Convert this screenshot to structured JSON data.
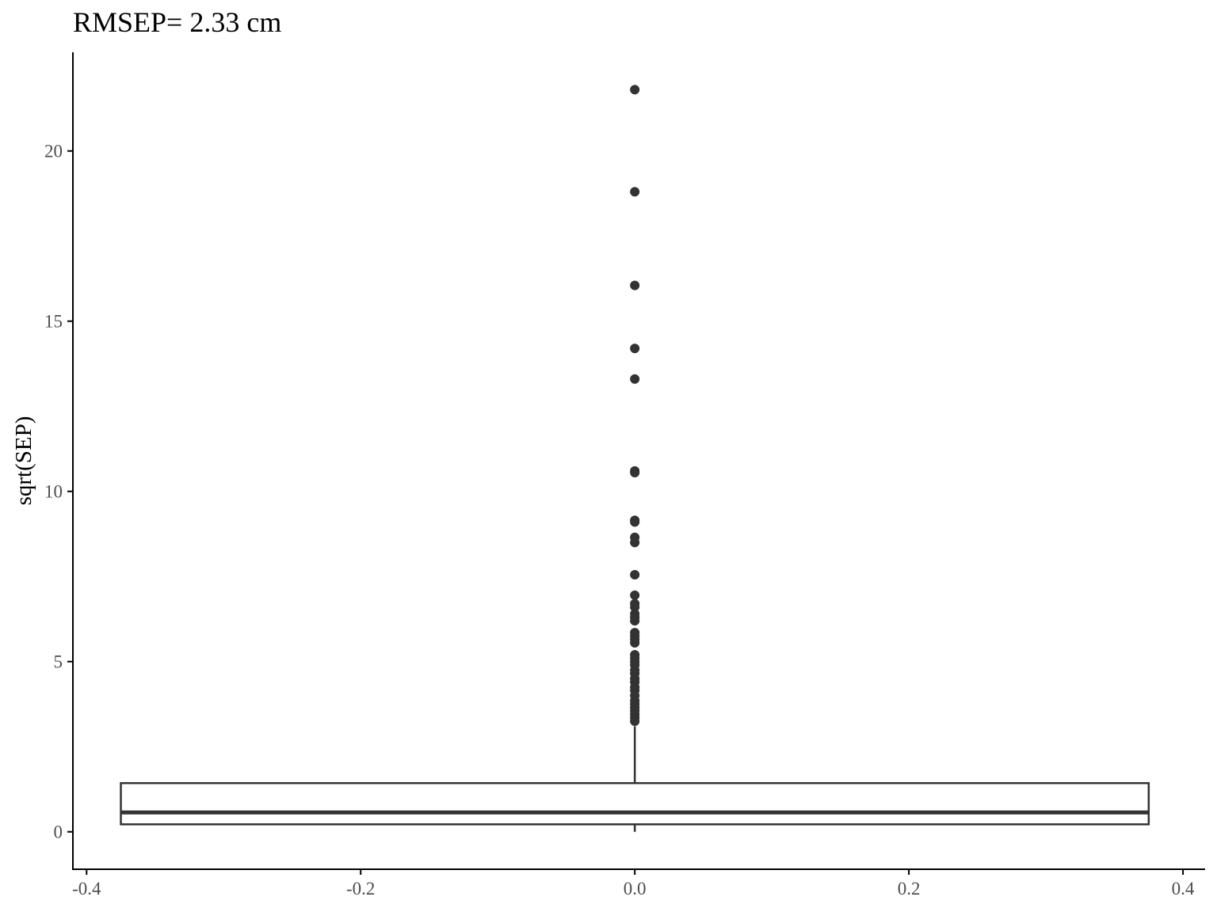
{
  "chart_data": {
    "type": "boxplot",
    "title": "RMSEP= 2.33 cm",
    "xlabel": "",
    "ylabel": "sqrt(SEP)",
    "xlim": [
      -0.41,
      0.415
    ],
    "ylim": [
      -1.1,
      22.9
    ],
    "x_ticks": [
      -0.4,
      -0.2,
      0.0,
      0.2,
      0.4
    ],
    "x_tick_labels": [
      "-0.4",
      "-0.2",
      "0.0",
      "0.2",
      "0.4"
    ],
    "y_ticks": [
      0,
      5,
      10,
      15,
      20
    ],
    "y_tick_labels": [
      "0",
      "5",
      "10",
      "15",
      "20"
    ],
    "grid": false,
    "box": {
      "x_center": 0.0,
      "x_left": -0.375,
      "x_right": 0.375,
      "q1": 0.22,
      "median": 0.57,
      "q3": 1.43,
      "whisker_low": 0.0,
      "whisker_high": 3.1
    },
    "outliers": [
      21.8,
      18.8,
      16.05,
      14.2,
      13.3,
      10.6,
      10.55,
      9.15,
      9.1,
      8.65,
      8.5,
      7.55,
      6.95,
      6.7,
      6.6,
      6.4,
      6.3,
      6.2,
      5.85,
      5.75,
      5.65,
      5.55,
      5.2,
      5.1,
      5.0,
      4.9,
      4.75,
      4.65,
      4.5,
      4.4,
      4.25,
      4.15,
      4.0,
      3.85,
      3.75,
      3.65,
      3.55,
      3.45,
      3.35,
      3.25
    ],
    "colors": {
      "box_line": "#333333",
      "median": "#333333",
      "outlier": "#333333",
      "axis": "#000000",
      "tick_label": "#4d4d4d"
    }
  }
}
